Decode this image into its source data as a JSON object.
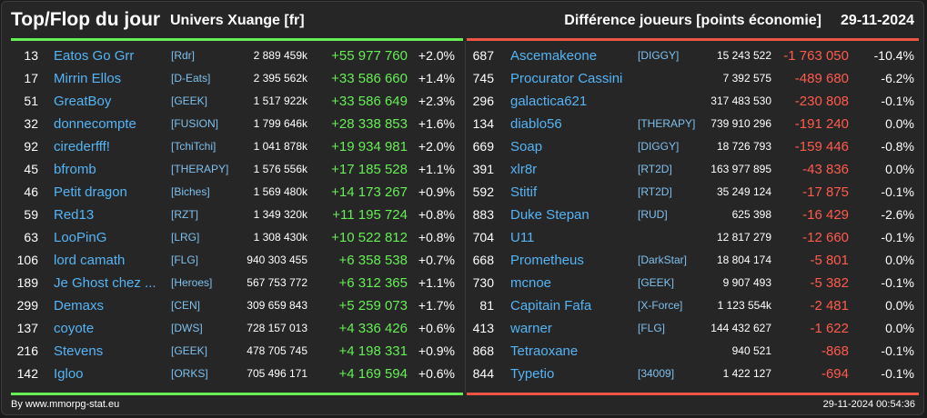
{
  "header": {
    "title": "Top/Flop du jour",
    "universe": "Univers Xuange [fr]",
    "subtitle": "Différence joueurs [points économie]",
    "date": "29-11-2024"
  },
  "top": [
    {
      "rank": "13",
      "name": "Eatos Go Grr",
      "alliance": "[Rdr]",
      "points": "2 889 459k",
      "diff": "+55 977 760",
      "pct": "+2.0%"
    },
    {
      "rank": "17",
      "name": "Mirrin Ellos",
      "alliance": "[D-Eats]",
      "points": "2 395 562k",
      "diff": "+33 586 660",
      "pct": "+1.4%"
    },
    {
      "rank": "51",
      "name": "GreatBoy",
      "alliance": "[GEEK]",
      "points": "1 517 922k",
      "diff": "+33 586 649",
      "pct": "+2.3%"
    },
    {
      "rank": "32",
      "name": "donnecompte",
      "alliance": "[FUSION]",
      "points": "1 799 646k",
      "diff": "+28 338 853",
      "pct": "+1.6%"
    },
    {
      "rank": "92",
      "name": "cirederfff!",
      "alliance": "[TchiTchi]",
      "points": "1 041 878k",
      "diff": "+19 934 981",
      "pct": "+2.0%"
    },
    {
      "rank": "45",
      "name": "bfromb",
      "alliance": "[THERAPY]",
      "points": "1 576 556k",
      "diff": "+17 185 528",
      "pct": "+1.1%"
    },
    {
      "rank": "46",
      "name": "Petit dragon",
      "alliance": "[Biches]",
      "points": "1 569 480k",
      "diff": "+14 173 267",
      "pct": "+0.9%"
    },
    {
      "rank": "59",
      "name": "Red13",
      "alliance": "[RZT]",
      "points": "1 349 320k",
      "diff": "+11 195 724",
      "pct": "+0.8%"
    },
    {
      "rank": "63",
      "name": "LooPinG",
      "alliance": "[LRG]",
      "points": "1 308 430k",
      "diff": "+10 522 812",
      "pct": "+0.8%"
    },
    {
      "rank": "106",
      "name": "lord camath",
      "alliance": "[FLG]",
      "points": "940 303 455",
      "diff": "+6 358 538",
      "pct": "+0.7%"
    },
    {
      "rank": "189",
      "name": "Je Ghost chez ...",
      "alliance": "[Heroes]",
      "points": "567 753 772",
      "diff": "+6 312 365",
      "pct": "+1.1%"
    },
    {
      "rank": "299",
      "name": "Demaxs",
      "alliance": "[CEN]",
      "points": "309 659 843",
      "diff": "+5 259 073",
      "pct": "+1.7%"
    },
    {
      "rank": "137",
      "name": "coyote",
      "alliance": "[DWS]",
      "points": "728 157 013",
      "diff": "+4 336 426",
      "pct": "+0.6%"
    },
    {
      "rank": "216",
      "name": "Stevens",
      "alliance": "[GEEK]",
      "points": "478 705 745",
      "diff": "+4 198 331",
      "pct": "+0.9%"
    },
    {
      "rank": "142",
      "name": "Igloo",
      "alliance": "[ORKS]",
      "points": "705 496 171",
      "diff": "+4 169 594",
      "pct": "+0.6%"
    }
  ],
  "flop": [
    {
      "rank": "687",
      "name": "Ascemakeone",
      "alliance": "[DIGGY]",
      "points": "15 243 522",
      "diff": "-1 763 050",
      "pct": "-10.4%"
    },
    {
      "rank": "745",
      "name": "Procurator Cassini",
      "alliance": "",
      "points": "7 392 575",
      "diff": "-489 680",
      "pct": "-6.2%"
    },
    {
      "rank": "296",
      "name": "galactica621",
      "alliance": "",
      "points": "317 483 530",
      "diff": "-230 808",
      "pct": "-0.1%"
    },
    {
      "rank": "134",
      "name": "diablo56",
      "alliance": "[THERAPY]",
      "points": "739 910 296",
      "diff": "-191 240",
      "pct": "0.0%"
    },
    {
      "rank": "669",
      "name": "Soap",
      "alliance": "[DIGGY]",
      "points": "18 726 793",
      "diff": "-159 446",
      "pct": "-0.8%"
    },
    {
      "rank": "391",
      "name": "xlr8r",
      "alliance": "[RT2D]",
      "points": "163 977 895",
      "diff": "-43 836",
      "pct": "0.0%"
    },
    {
      "rank": "592",
      "name": "Stitif",
      "alliance": "[RT2D]",
      "points": "35 249 124",
      "diff": "-17 875",
      "pct": "-0.1%"
    },
    {
      "rank": "883",
      "name": "Duke Stepan",
      "alliance": "[RUD]",
      "points": "625 398",
      "diff": "-16 429",
      "pct": "-2.6%"
    },
    {
      "rank": "704",
      "name": "U11",
      "alliance": "",
      "points": "12 817 279",
      "diff": "-12 660",
      "pct": "-0.1%"
    },
    {
      "rank": "668",
      "name": "Prometheus",
      "alliance": "[DarkStar]",
      "points": "18 804 174",
      "diff": "-5 801",
      "pct": "0.0%"
    },
    {
      "rank": "730",
      "name": "mcnoe",
      "alliance": "[GEEK]",
      "points": "9 907 493",
      "diff": "-5 382",
      "pct": "-0.1%"
    },
    {
      "rank": "81",
      "name": "Capitain Fafa",
      "alliance": "[X-Force]",
      "points": "1 123 554k",
      "diff": "-2 481",
      "pct": "0.0%"
    },
    {
      "rank": "413",
      "name": "warner",
      "alliance": "[FLG]",
      "points": "144 432 627",
      "diff": "-1 622",
      "pct": "0.0%"
    },
    {
      "rank": "868",
      "name": "Tetraoxane",
      "alliance": "",
      "points": "940 521",
      "diff": "-868",
      "pct": "-0.1%"
    },
    {
      "rank": "844",
      "name": "Typetio",
      "alliance": "[34009]",
      "points": "1 422 127",
      "diff": "-694",
      "pct": "-0.1%"
    }
  ],
  "footer": {
    "credit": "By www.mmorpg-stat.eu",
    "timestamp": "29-11-2024 00:54:36"
  },
  "colors": {
    "positive": "#66ee55",
    "negative": "#ff5b4d",
    "name_link": "#55b4f5"
  }
}
